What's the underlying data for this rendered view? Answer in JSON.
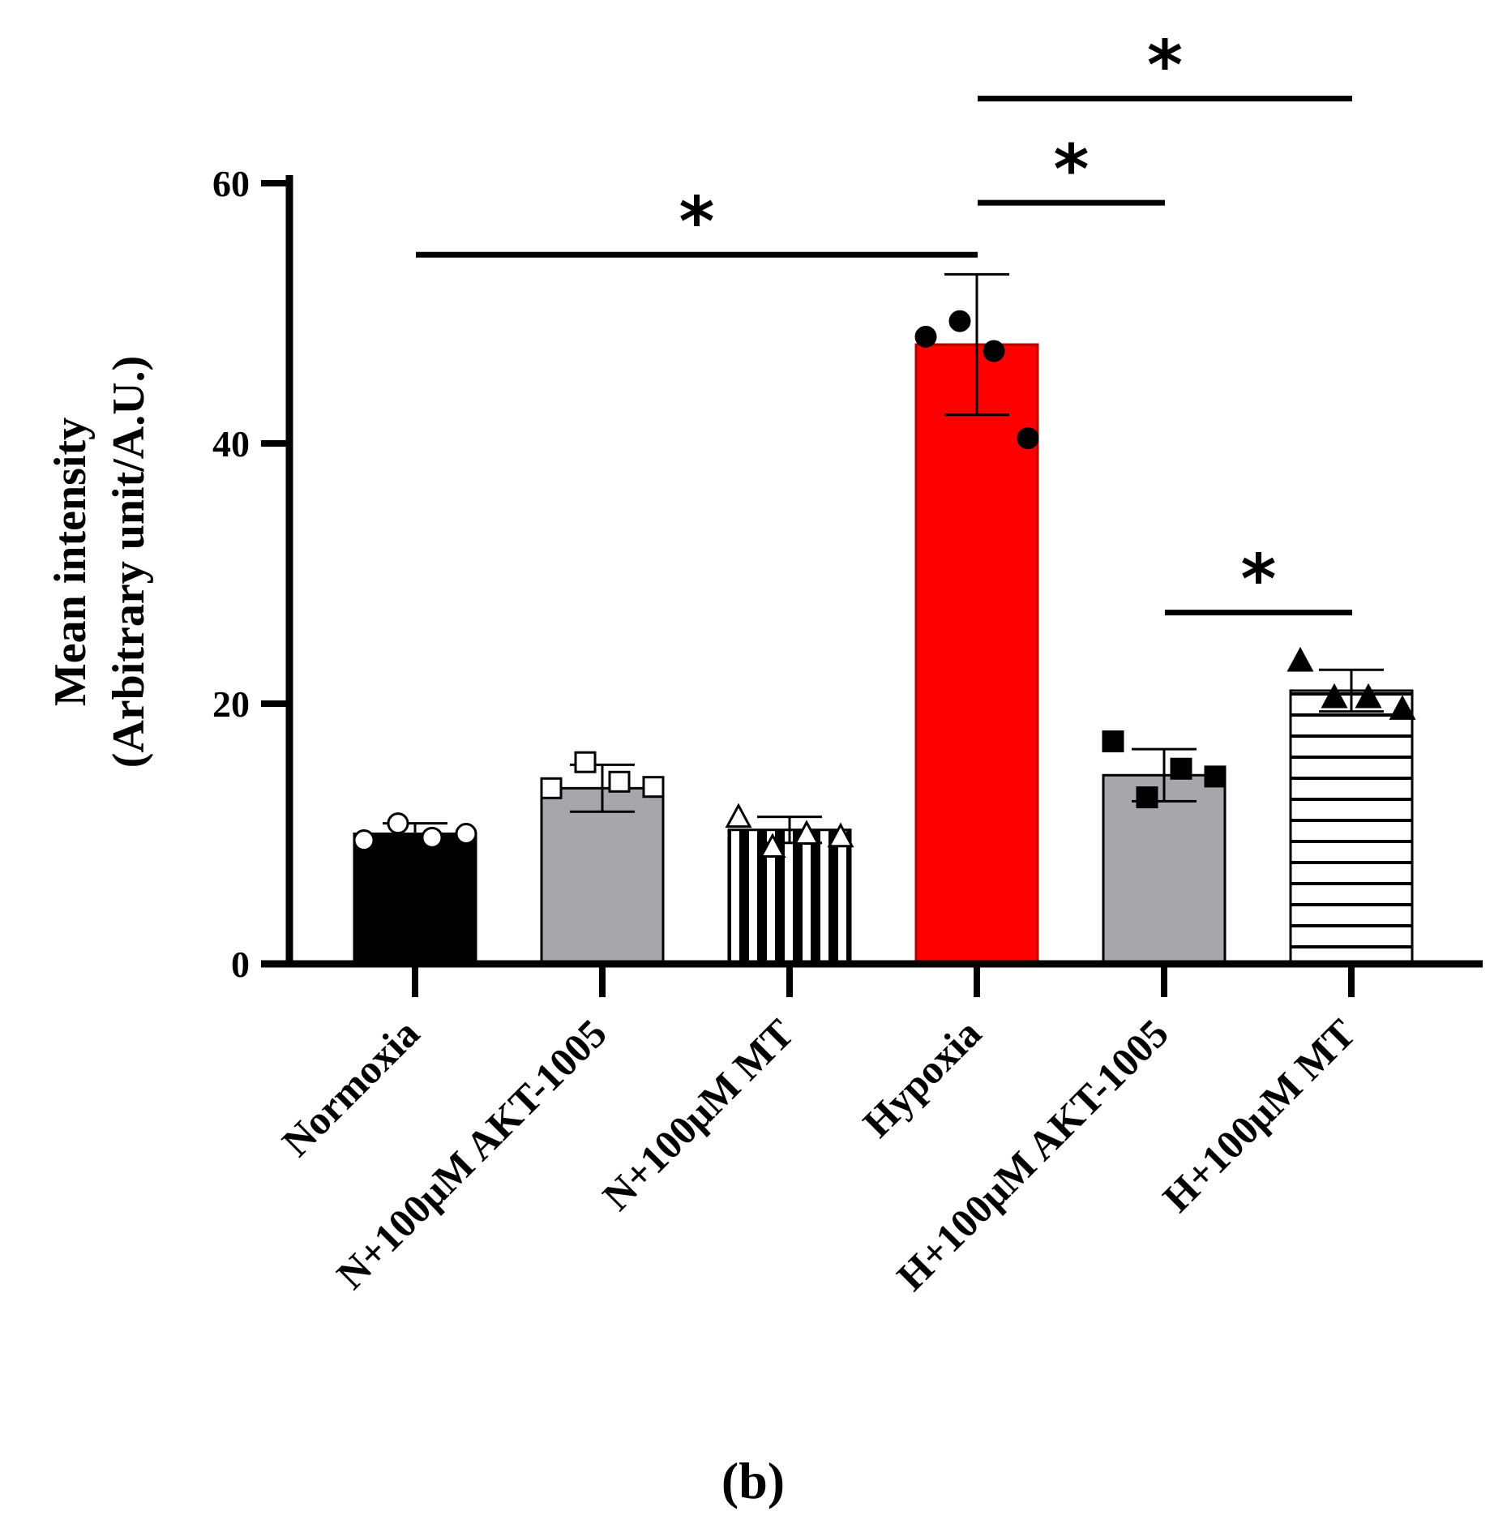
{
  "chart_data": {
    "type": "bar",
    "ylabel": [
      "Mean intensity",
      "(Arbitrary unit/A.U.)"
    ],
    "ylim": [
      0,
      60
    ],
    "yticks": [
      0,
      20,
      40,
      60
    ],
    "categories": [
      "Normoxia",
      "N+100μM AKT-1005",
      "N+100μM MT",
      "Hypoxia",
      "H+100μM AKT-1005",
      "H+100μM MT"
    ],
    "values": [
      10.0,
      13.5,
      10.3,
      47.6,
      14.5,
      21.0
    ],
    "errors": [
      0.8,
      1.8,
      1.0,
      5.4,
      2.0,
      1.6
    ],
    "points": [
      [
        9.5,
        10.8,
        9.7,
        10.0
      ],
      [
        13.5,
        15.5,
        14.0,
        13.6
      ],
      [
        11.3,
        9.0,
        10.0,
        9.8
      ],
      [
        48.2,
        49.4,
        47.1,
        40.4
      ],
      [
        17.1,
        12.8,
        15.0,
        14.4
      ],
      [
        23.3,
        20.5,
        20.5,
        19.6
      ]
    ],
    "bar_fills": [
      "#000000",
      "#a7a6ab",
      "striped-vertical",
      "#ff0000",
      "#a7a6ab",
      "striped-horizontal"
    ],
    "markers": [
      "circle-open",
      "square-open",
      "triangle-open",
      "circle-filled",
      "square-filled",
      "triangle-filled"
    ],
    "significance": [
      {
        "from": 0,
        "to": 3,
        "y": 54.5,
        "label": "*"
      },
      {
        "from": 3,
        "to": 4,
        "y": 58.5,
        "label": "*"
      },
      {
        "from": 3,
        "to": 5,
        "y": 66.5,
        "label": "*"
      },
      {
        "from": 4,
        "to": 5,
        "y": 27.0,
        "label": "*"
      }
    ],
    "grid": false,
    "legend": "none"
  },
  "panel_label": "(b)"
}
